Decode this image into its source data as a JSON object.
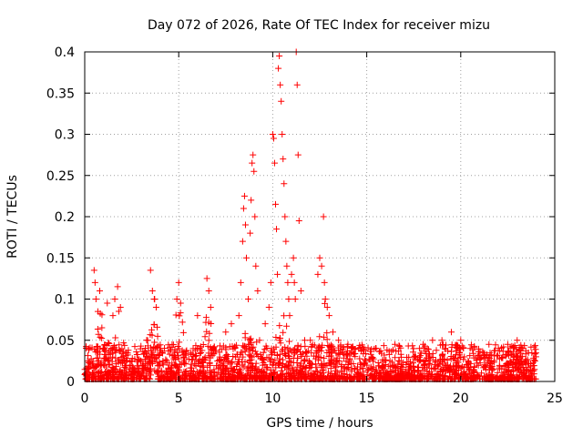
{
  "chart_data": {
    "type": "scatter",
    "title": "Day 072 of 2026, Rate Of TEC Index for receiver mizu",
    "xlabel": "GPS time / hours",
    "ylabel": "ROTI / TECUs",
    "xlim": [
      0,
      25
    ],
    "ylim": [
      0,
      0.4
    ],
    "x_ticks": [
      0,
      5,
      10,
      15,
      20,
      25
    ],
    "x_tick_labels": [
      "0",
      "5",
      "10",
      "15",
      "20",
      "25"
    ],
    "y_ticks": [
      0,
      0.05,
      0.1,
      0.15,
      0.2,
      0.25,
      0.3,
      0.35,
      0.4
    ],
    "y_tick_labels": [
      "0",
      "0.05",
      "0.1",
      "0.15",
      "0.2",
      "0.25",
      "0.3",
      "0.35",
      "0.4"
    ],
    "grid": true,
    "marker": "+",
    "marker_color": "#ff0000",
    "data_coverage_hours": [
      0,
      24
    ],
    "series": [
      {
        "name": "ROTI",
        "points": [
          [
            0.5,
            0.135
          ],
          [
            0.55,
            0.12
          ],
          [
            0.6,
            0.1
          ],
          [
            0.7,
            0.085
          ],
          [
            0.8,
            0.11
          ],
          [
            1.2,
            0.095
          ],
          [
            1.5,
            0.08
          ],
          [
            1.6,
            0.1
          ],
          [
            1.75,
            0.115
          ],
          [
            1.9,
            0.09
          ],
          [
            3.5,
            0.135
          ],
          [
            3.6,
            0.11
          ],
          [
            3.7,
            0.1
          ],
          [
            3.8,
            0.09
          ],
          [
            4.9,
            0.1
          ],
          [
            5.0,
            0.12
          ],
          [
            5.1,
            0.095
          ],
          [
            6.0,
            0.08
          ],
          [
            6.5,
            0.125
          ],
          [
            6.6,
            0.11
          ],
          [
            6.7,
            0.09
          ],
          [
            7.5,
            0.06
          ],
          [
            7.8,
            0.07
          ],
          [
            8.2,
            0.08
          ],
          [
            8.3,
            0.12
          ],
          [
            8.4,
            0.17
          ],
          [
            8.45,
            0.21
          ],
          [
            8.5,
            0.225
          ],
          [
            8.55,
            0.19
          ],
          [
            8.6,
            0.15
          ],
          [
            8.7,
            0.1
          ],
          [
            8.8,
            0.18
          ],
          [
            8.85,
            0.22
          ],
          [
            8.9,
            0.265
          ],
          [
            8.95,
            0.275
          ],
          [
            9.0,
            0.255
          ],
          [
            9.05,
            0.2
          ],
          [
            9.1,
            0.14
          ],
          [
            9.2,
            0.11
          ],
          [
            9.3,
            0.05
          ],
          [
            9.6,
            0.07
          ],
          [
            9.8,
            0.09
          ],
          [
            9.9,
            0.12
          ],
          [
            10.0,
            0.3
          ],
          [
            10.05,
            0.295
          ],
          [
            10.1,
            0.265
          ],
          [
            10.15,
            0.215
          ],
          [
            10.2,
            0.185
          ],
          [
            10.25,
            0.13
          ],
          [
            10.3,
            0.38
          ],
          [
            10.35,
            0.395
          ],
          [
            10.4,
            0.36
          ],
          [
            10.45,
            0.34
          ],
          [
            10.5,
            0.3
          ],
          [
            10.55,
            0.27
          ],
          [
            10.6,
            0.24
          ],
          [
            10.65,
            0.2
          ],
          [
            10.7,
            0.17
          ],
          [
            10.75,
            0.14
          ],
          [
            10.8,
            0.12
          ],
          [
            10.85,
            0.1
          ],
          [
            10.9,
            0.08
          ],
          [
            11.0,
            0.13
          ],
          [
            11.1,
            0.15
          ],
          [
            11.15,
            0.12
          ],
          [
            11.2,
            0.1
          ],
          [
            11.25,
            0.4
          ],
          [
            11.3,
            0.36
          ],
          [
            11.35,
            0.275
          ],
          [
            11.4,
            0.195
          ],
          [
            11.5,
            0.11
          ],
          [
            11.7,
            0.05
          ],
          [
            12.0,
            0.05
          ],
          [
            12.4,
            0.13
          ],
          [
            12.5,
            0.15
          ],
          [
            12.6,
            0.14
          ],
          [
            12.7,
            0.2
          ],
          [
            12.75,
            0.12
          ],
          [
            12.8,
            0.1
          ],
          [
            12.9,
            0.09
          ],
          [
            13.0,
            0.08
          ],
          [
            13.2,
            0.06
          ],
          [
            13.5,
            0.05
          ],
          [
            14.0,
            0.045
          ],
          [
            15.5,
            0.04
          ],
          [
            16.5,
            0.045
          ],
          [
            18.0,
            0.045
          ],
          [
            18.5,
            0.05
          ],
          [
            19.0,
            0.05
          ],
          [
            19.5,
            0.06
          ],
          [
            20.0,
            0.05
          ],
          [
            20.5,
            0.04
          ],
          [
            21.5,
            0.045
          ],
          [
            22.0,
            0.04
          ],
          [
            22.5,
            0.045
          ],
          [
            23.0,
            0.05
          ],
          [
            23.3,
            0.04
          ],
          [
            23.6,
            0.035
          ],
          [
            24.0,
            0.03
          ]
        ]
      }
    ]
  }
}
